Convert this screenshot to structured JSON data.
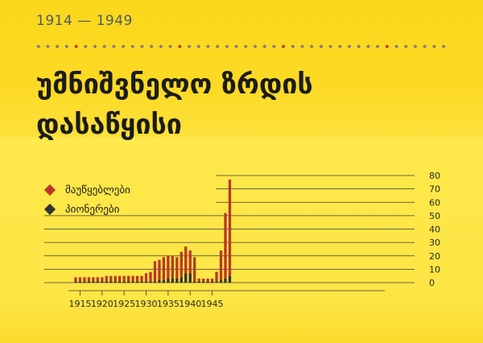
{
  "header": {
    "period": "1914 — 1949",
    "title_line1": "უმნიშვნელო ზრდის",
    "title_line2": "დასაწყისი"
  },
  "colors": {
    "series_a": "#b8382a",
    "series_b": "#333333",
    "dot_grey": "#7d7d7d",
    "dot_red": "#c0392b",
    "axis_text": "#2a2a2a",
    "grid": "#3a3a3a"
  },
  "chart_data": {
    "type": "bar",
    "stacked": true,
    "x": [
      1914,
      1915,
      1916,
      1917,
      1918,
      1919,
      1920,
      1921,
      1922,
      1923,
      1924,
      1925,
      1926,
      1927,
      1928,
      1929,
      1930,
      1931,
      1932,
      1933,
      1934,
      1935,
      1936,
      1937,
      1938,
      1939,
      1940,
      1941,
      1942,
      1943,
      1944,
      1945,
      1946,
      1947,
      1948,
      1949
    ],
    "series": [
      {
        "name": "მაუწყებლები",
        "color": "#b8382a",
        "values": [
          3,
          3,
          3,
          3,
          3,
          3,
          3,
          4,
          4,
          4,
          4,
          4,
          4,
          4,
          4,
          4,
          6,
          7,
          15,
          15,
          17,
          17,
          17,
          16,
          19,
          20,
          17,
          18,
          2,
          2,
          2,
          2,
          7,
          22,
          49,
          72
        ]
      },
      {
        "name": "პიონერები",
        "color": "#333333",
        "values": [
          1,
          1,
          1,
          1,
          1,
          1,
          1,
          1,
          1,
          1,
          1,
          1,
          1,
          1,
          1,
          1,
          1,
          1,
          1,
          2,
          2,
          3,
          3,
          3,
          4,
          7,
          7,
          1,
          1,
          1,
          1,
          1,
          1,
          2,
          3,
          5
        ]
      }
    ],
    "x_ticks": [
      "1915",
      "1920",
      "1925",
      "1930",
      "1935",
      "1940",
      "1945"
    ],
    "y_ticks": [
      "0",
      "10",
      "20",
      "30",
      "40",
      "50",
      "60",
      "70",
      "80"
    ],
    "ylim": [
      0,
      80
    ],
    "grid": true,
    "legend_position": "top-left"
  }
}
